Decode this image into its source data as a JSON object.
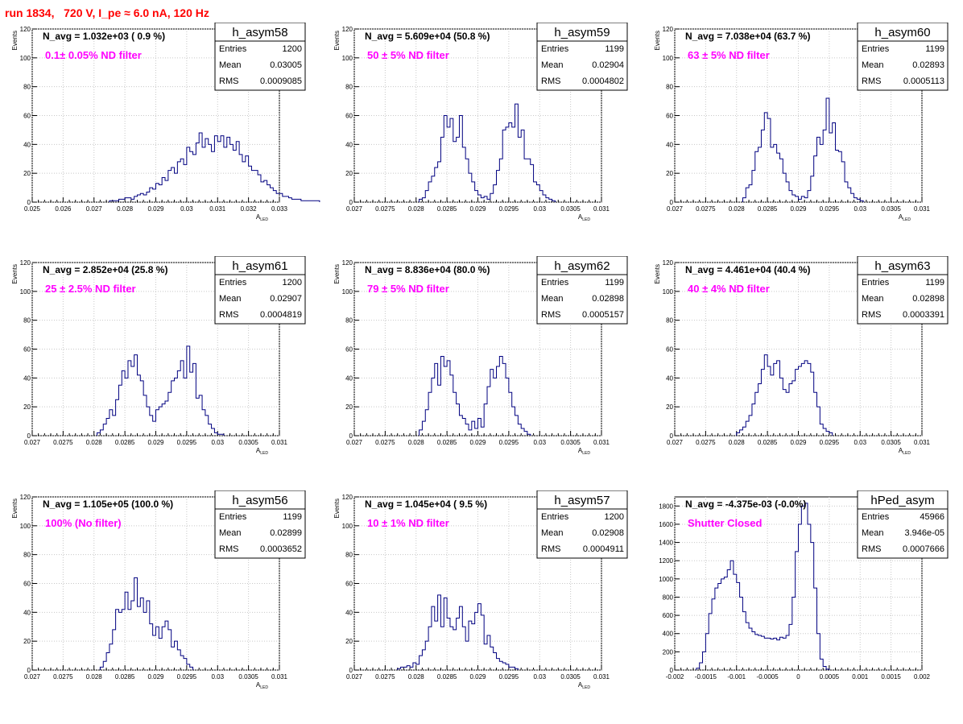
{
  "header": {
    "title": "run 1834,   720 V, I_pe ≈ 6.0 nA, 120 Hz"
  },
  "chart_data": [
    {
      "type": "bar",
      "name": "h_asym58",
      "navg": "N_avg = 1.032e+03 ( 0.9 %)",
      "filter": "0.1± 0.05% ND filter",
      "stats": {
        "Entries": "1200",
        "Mean": "0.03005",
        "RMS": "0.0009085"
      },
      "xlabel": "A_LED",
      "ylabel": "Events",
      "xlim": [
        0.025,
        0.033
      ],
      "ylim": [
        0,
        120
      ],
      "xticks": [
        0.025,
        0.026,
        0.027,
        0.028,
        0.029,
        0.03,
        0.031,
        0.032,
        0.033
      ],
      "xtick_labels": [
        "0.025",
        "0.026",
        "0.027",
        "0.028",
        "0.029",
        "0.03",
        "0.031",
        "0.032",
        "0.033"
      ],
      "yticks": [
        0,
        20,
        40,
        60,
        80,
        100,
        120
      ],
      "ytick_labels": [
        "0",
        "20",
        "40",
        "60",
        "80",
        "100",
        "120"
      ],
      "x_start": 0.0275,
      "bin_width": 0.0001,
      "values": [
        1,
        1,
        1,
        2,
        2,
        3,
        3,
        2,
        4,
        5,
        6,
        5,
        7,
        10,
        9,
        13,
        12,
        17,
        15,
        22,
        24,
        20,
        28,
        30,
        26,
        38,
        35,
        33,
        41,
        48,
        38,
        44,
        40,
        35,
        46,
        42,
        46,
        38,
        45,
        40,
        36,
        42,
        33,
        28,
        32,
        25,
        22,
        22,
        19,
        14,
        15,
        12,
        10,
        8,
        6,
        6,
        4,
        4,
        3,
        2,
        2,
        2,
        1,
        1,
        1,
        1,
        1,
        1
      ]
    },
    {
      "type": "bar",
      "name": "h_asym59",
      "navg": "N_avg = 5.609e+04 (50.8 %)",
      "filter": "50 ± 5% ND filter",
      "stats": {
        "Entries": "1199",
        "Mean": "0.02904",
        "RMS": "0.0004802"
      },
      "xlabel": "A_LED",
      "ylabel": "Events",
      "xlim": [
        0.027,
        0.031
      ],
      "ylim": [
        0,
        120
      ],
      "xticks": [
        0.027,
        0.0275,
        0.028,
        0.0285,
        0.029,
        0.0295,
        0.03,
        0.0305,
        0.031
      ],
      "xtick_labels": [
        "0.027",
        "0.0275",
        "0.028",
        "0.0285",
        "0.029",
        "0.0295",
        "0.03",
        "0.0305",
        "0.031"
      ],
      "yticks": [
        0,
        20,
        40,
        60,
        80,
        100,
        120
      ],
      "ytick_labels": [
        "0",
        "20",
        "40",
        "60",
        "80",
        "100",
        "120"
      ],
      "x_start": 0.02805,
      "bin_width": 5e-05,
      "values": [
        2,
        3,
        8,
        14,
        18,
        24,
        28,
        45,
        60,
        52,
        58,
        42,
        45,
        60,
        38,
        30,
        20,
        14,
        8,
        5,
        3,
        4,
        2,
        6,
        12,
        22,
        30,
        50,
        52,
        55,
        52,
        68,
        45,
        50,
        30,
        30,
        26,
        14,
        12,
        8,
        5,
        3,
        2,
        1
      ]
    },
    {
      "type": "bar",
      "name": "h_asym60",
      "navg": "N_avg = 7.038e+04 (63.7 %)",
      "filter": "63 ± 5% ND filter",
      "stats": {
        "Entries": "1199",
        "Mean": "0.02893",
        "RMS": "0.0005113"
      },
      "xlabel": "A_LED",
      "ylabel": "Events",
      "xlim": [
        0.027,
        0.031
      ],
      "ylim": [
        0,
        120
      ],
      "xticks": [
        0.027,
        0.0275,
        0.028,
        0.0285,
        0.029,
        0.0295,
        0.03,
        0.0305,
        0.031
      ],
      "xtick_labels": [
        "0.027",
        "0.0275",
        "0.028",
        "0.0285",
        "0.029",
        "0.0295",
        "0.03",
        "0.0305",
        "0.031"
      ],
      "yticks": [
        0,
        20,
        40,
        60,
        80,
        100,
        120
      ],
      "ytick_labels": [
        "0",
        "20",
        "40",
        "60",
        "80",
        "100",
        "120"
      ],
      "x_start": 0.0281,
      "bin_width": 5e-05,
      "values": [
        3,
        10,
        12,
        22,
        35,
        38,
        50,
        62,
        58,
        38,
        40,
        34,
        30,
        20,
        14,
        8,
        5,
        4,
        2,
        4,
        3,
        8,
        18,
        32,
        45,
        40,
        50,
        72,
        48,
        55,
        36,
        35,
        28,
        14,
        10,
        6,
        3,
        2,
        1
      ]
    },
    {
      "type": "bar",
      "name": "h_asym61",
      "navg": "N_avg = 2.852e+04 (25.8 %)",
      "filter": "25 ± 2.5% ND filter",
      "stats": {
        "Entries": "1200",
        "Mean": "0.02907",
        "RMS": "0.0004819"
      },
      "xlabel": "A_LED",
      "ylabel": "Events",
      "xlim": [
        0.027,
        0.031
      ],
      "ylim": [
        0,
        120
      ],
      "xticks": [
        0.027,
        0.0275,
        0.028,
        0.0285,
        0.029,
        0.0295,
        0.03,
        0.0305,
        0.031
      ],
      "xtick_labels": [
        "0.027",
        "0.0275",
        "0.028",
        "0.0285",
        "0.029",
        "0.0295",
        "0.03",
        "0.0305",
        "0.031"
      ],
      "yticks": [
        0,
        20,
        40,
        60,
        80,
        100,
        120
      ],
      "ytick_labels": [
        "0",
        "20",
        "40",
        "60",
        "80",
        "100",
        "120"
      ],
      "x_start": 0.02805,
      "bin_width": 5e-05,
      "values": [
        2,
        4,
        8,
        12,
        18,
        14,
        25,
        35,
        45,
        40,
        52,
        48,
        56,
        42,
        38,
        28,
        20,
        14,
        10,
        18,
        20,
        22,
        24,
        30,
        38,
        40,
        45,
        52,
        40,
        62,
        44,
        50,
        26,
        28,
        18,
        14,
        8,
        5,
        2,
        1,
        1
      ]
    },
    {
      "type": "bar",
      "name": "h_asym62",
      "navg": "N_avg = 8.836e+04 (80.0 %)",
      "filter": "79 ± 5% ND filter",
      "stats": {
        "Entries": "1199",
        "Mean": "0.02898",
        "RMS": "0.0005157"
      },
      "xlabel": "A_LED",
      "ylabel": "Events",
      "xlim": [
        0.027,
        0.031
      ],
      "ylim": [
        0,
        120
      ],
      "xticks": [
        0.027,
        0.0275,
        0.028,
        0.0285,
        0.029,
        0.0295,
        0.03,
        0.0305,
        0.031
      ],
      "xtick_labels": [
        "0.027",
        "0.0275",
        "0.028",
        "0.0285",
        "0.029",
        "0.0295",
        "0.03",
        "0.0305",
        "0.031"
      ],
      "yticks": [
        0,
        20,
        40,
        60,
        80,
        100,
        120
      ],
      "ytick_labels": [
        "0",
        "20",
        "40",
        "60",
        "80",
        "100",
        "120"
      ],
      "x_start": 0.02805,
      "bin_width": 5e-05,
      "values": [
        4,
        10,
        18,
        30,
        40,
        50,
        35,
        55,
        48,
        52,
        42,
        30,
        22,
        14,
        12,
        8,
        4,
        10,
        5,
        12,
        6,
        22,
        34,
        46,
        40,
        48,
        55,
        50,
        40,
        30,
        20,
        14,
        8,
        5,
        3,
        1
      ]
    },
    {
      "type": "bar",
      "name": "h_asym63",
      "navg": "N_avg = 4.461e+04 (40.4 %)",
      "filter": "40 ± 4% ND filter",
      "stats": {
        "Entries": "1199",
        "Mean": "0.02898",
        "RMS": "0.0003391"
      },
      "xlabel": "A_LED",
      "ylabel": "Events",
      "xlim": [
        0.027,
        0.031
      ],
      "ylim": [
        0,
        120
      ],
      "xticks": [
        0.027,
        0.0275,
        0.028,
        0.0285,
        0.029,
        0.0295,
        0.03,
        0.0305,
        0.031
      ],
      "xtick_labels": [
        "0.027",
        "0.0275",
        "0.028",
        "0.0285",
        "0.029",
        "0.0295",
        "0.03",
        "0.0305",
        "0.031"
      ],
      "yticks": [
        0,
        20,
        40,
        60,
        80,
        100,
        120
      ],
      "ytick_labels": [
        "0",
        "20",
        "40",
        "60",
        "80",
        "100",
        "120"
      ],
      "x_start": 0.028,
      "bin_width": 5e-05,
      "values": [
        2,
        4,
        6,
        10,
        14,
        22,
        30,
        36,
        46,
        56,
        48,
        42,
        50,
        52,
        40,
        32,
        30,
        36,
        38,
        46,
        48,
        50,
        52,
        50,
        44,
        30,
        20,
        8,
        5,
        3,
        2
      ]
    },
    {
      "type": "bar",
      "name": "h_asym56",
      "navg": "N_avg = 1.105e+05 (100.0 %)",
      "filter": "100% (No filter)",
      "stats": {
        "Entries": "1199",
        "Mean": "0.02899",
        "RMS": "0.0003652"
      },
      "xlabel": "A_LED",
      "ylabel": "Events",
      "xlim": [
        0.027,
        0.031
      ],
      "ylim": [
        0,
        120
      ],
      "xticks": [
        0.027,
        0.0275,
        0.028,
        0.0285,
        0.029,
        0.0295,
        0.03,
        0.0305,
        0.031
      ],
      "xtick_labels": [
        "0.027",
        "0.0275",
        "0.028",
        "0.0285",
        "0.029",
        "0.0295",
        "0.03",
        "0.0305",
        "0.031"
      ],
      "yticks": [
        0,
        20,
        40,
        60,
        80,
        100,
        120
      ],
      "ytick_labels": [
        "0",
        "20",
        "40",
        "60",
        "80",
        "100",
        "120"
      ],
      "x_start": 0.0281,
      "bin_width": 5e-05,
      "values": [
        2,
        6,
        12,
        18,
        28,
        42,
        40,
        42,
        54,
        42,
        48,
        64,
        44,
        50,
        40,
        48,
        32,
        24,
        30,
        22,
        30,
        34,
        28,
        16,
        20,
        14,
        10,
        8,
        4,
        2
      ]
    },
    {
      "type": "bar",
      "name": "h_asym57",
      "navg": "N_avg = 1.045e+04 ( 9.5 %)",
      "filter": "10 ± 1% ND filter",
      "stats": {
        "Entries": "1200",
        "Mean": "0.02908",
        "RMS": "0.0004911"
      },
      "xlabel": "A_LED",
      "ylabel": "Events",
      "xlim": [
        0.027,
        0.031
      ],
      "ylim": [
        0,
        120
      ],
      "xticks": [
        0.027,
        0.0275,
        0.028,
        0.0285,
        0.029,
        0.0295,
        0.03,
        0.0305,
        0.031
      ],
      "xtick_labels": [
        "0.027",
        "0.0275",
        "0.028",
        "0.0285",
        "0.029",
        "0.0295",
        "0.03",
        "0.0305",
        "0.031"
      ],
      "yticks": [
        0,
        20,
        40,
        60,
        80,
        100,
        120
      ],
      "ytick_labels": [
        "0",
        "20",
        "40",
        "60",
        "80",
        "100",
        "120"
      ],
      "x_start": 0.0277,
      "bin_width": 5e-05,
      "values": [
        1,
        2,
        2,
        3,
        2,
        5,
        4,
        10,
        14,
        20,
        30,
        44,
        34,
        52,
        30,
        50,
        36,
        30,
        28,
        36,
        44,
        30,
        20,
        34,
        32,
        40,
        46,
        38,
        18,
        24,
        16,
        12,
        8,
        6,
        5,
        4,
        2,
        2,
        1
      ]
    },
    {
      "type": "bar",
      "name": "hPed_asym",
      "navg": "N_avg = -4.375e-03 (-0.0%)",
      "filter": "Shutter Closed",
      "stats": {
        "Entries": "45966",
        "Mean": "3.946e-05",
        "RMS": "0.0007666"
      },
      "xlabel": "",
      "ylabel": "",
      "xlim": [
        -0.002,
        0.002
      ],
      "ylim": [
        0,
        1900
      ],
      "xticks": [
        -0.002,
        -0.0015,
        -0.001,
        -0.0005,
        0,
        0.0005,
        0.001,
        0.0015,
        0.002
      ],
      "xtick_labels": [
        "-0.002",
        "-0.0015",
        "-0.001",
        "-0.0005",
        "0",
        "0.0005",
        "0.001",
        "0.0015",
        "0.002"
      ],
      "yticks": [
        0,
        200,
        400,
        600,
        800,
        1000,
        1200,
        1400,
        1600,
        1800
      ],
      "ytick_labels": [
        "0",
        "200",
        "400",
        "600",
        "800",
        "1000",
        "1200",
        "1400",
        "1600",
        "1800"
      ],
      "x_start": -0.00165,
      "bin_width": 5e-05,
      "values": [
        20,
        80,
        200,
        400,
        620,
        780,
        900,
        950,
        1000,
        1020,
        1100,
        1200,
        1050,
        960,
        800,
        640,
        520,
        460,
        420,
        390,
        380,
        370,
        350,
        350,
        340,
        350,
        330,
        360,
        350,
        380,
        500,
        800,
        1300,
        1600,
        1800,
        1830,
        1600,
        1400,
        900,
        400,
        120,
        40,
        10
      ]
    }
  ]
}
